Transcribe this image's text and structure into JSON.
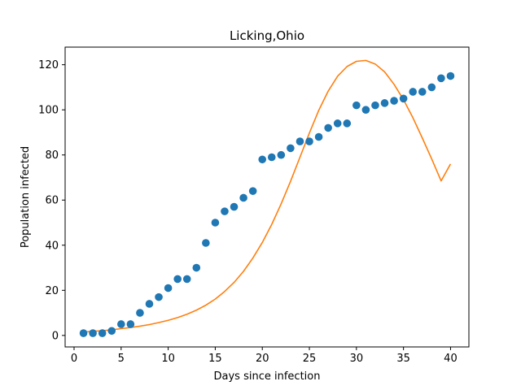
{
  "chart_data": {
    "type": "scatter",
    "title": "Licking,Ohio",
    "xlabel": "Days since infection",
    "ylabel": "Population infected",
    "xlim": [
      -0.95,
      41.95
    ],
    "ylim": [
      -5.1,
      127.8
    ],
    "xticks": [
      0,
      5,
      10,
      15,
      20,
      25,
      30,
      35,
      40
    ],
    "yticks": [
      0,
      20,
      40,
      60,
      80,
      100,
      120
    ],
    "grid": false,
    "series": [
      {
        "kind": "scatter",
        "color": "#1f77b4",
        "x": [
          1,
          2,
          3,
          4,
          5,
          6,
          7,
          8,
          9,
          10,
          11,
          12,
          13,
          14,
          15,
          16,
          17,
          18,
          19,
          20,
          21,
          22,
          23,
          24,
          25,
          26,
          27,
          28,
          29,
          30,
          31,
          32,
          33,
          34,
          35,
          36,
          37,
          38,
          39,
          40
        ],
        "y": [
          1,
          1,
          1,
          2,
          5,
          5,
          10,
          14,
          17,
          21,
          25,
          25,
          30,
          41,
          50,
          55,
          57,
          61,
          64,
          78,
          79,
          80,
          83,
          86,
          86,
          88,
          92,
          94,
          94,
          102,
          100,
          102,
          103,
          104,
          105,
          108,
          108,
          110,
          114,
          115
        ]
      },
      {
        "kind": "line",
        "color": "#ff7f0e",
        "x": [
          1,
          2,
          3,
          4,
          5,
          6,
          7,
          8,
          9,
          10,
          11,
          12,
          13,
          14,
          15,
          16,
          17,
          18,
          19,
          20,
          21,
          22,
          23,
          24,
          25,
          26,
          27,
          28,
          29,
          30,
          31,
          32,
          33,
          34,
          35,
          36,
          37,
          38,
          39,
          40
        ],
        "y": [
          1.5,
          1.8,
          2.1,
          2.5,
          3.0,
          3.5,
          4.1,
          4.8,
          5.7,
          6.7,
          7.9,
          9.4,
          11.2,
          13.4,
          16.1,
          19.5,
          23.5,
          28.4,
          34.3,
          41.2,
          49.2,
          58.3,
          68.3,
          79.0,
          89.7,
          99.8,
          108.3,
          114.9,
          119.2,
          121.5,
          121.9,
          120.3,
          116.8,
          111.3,
          104.5,
          96.5,
          87.5,
          78.2,
          68.5,
          76.0
        ]
      }
    ]
  }
}
